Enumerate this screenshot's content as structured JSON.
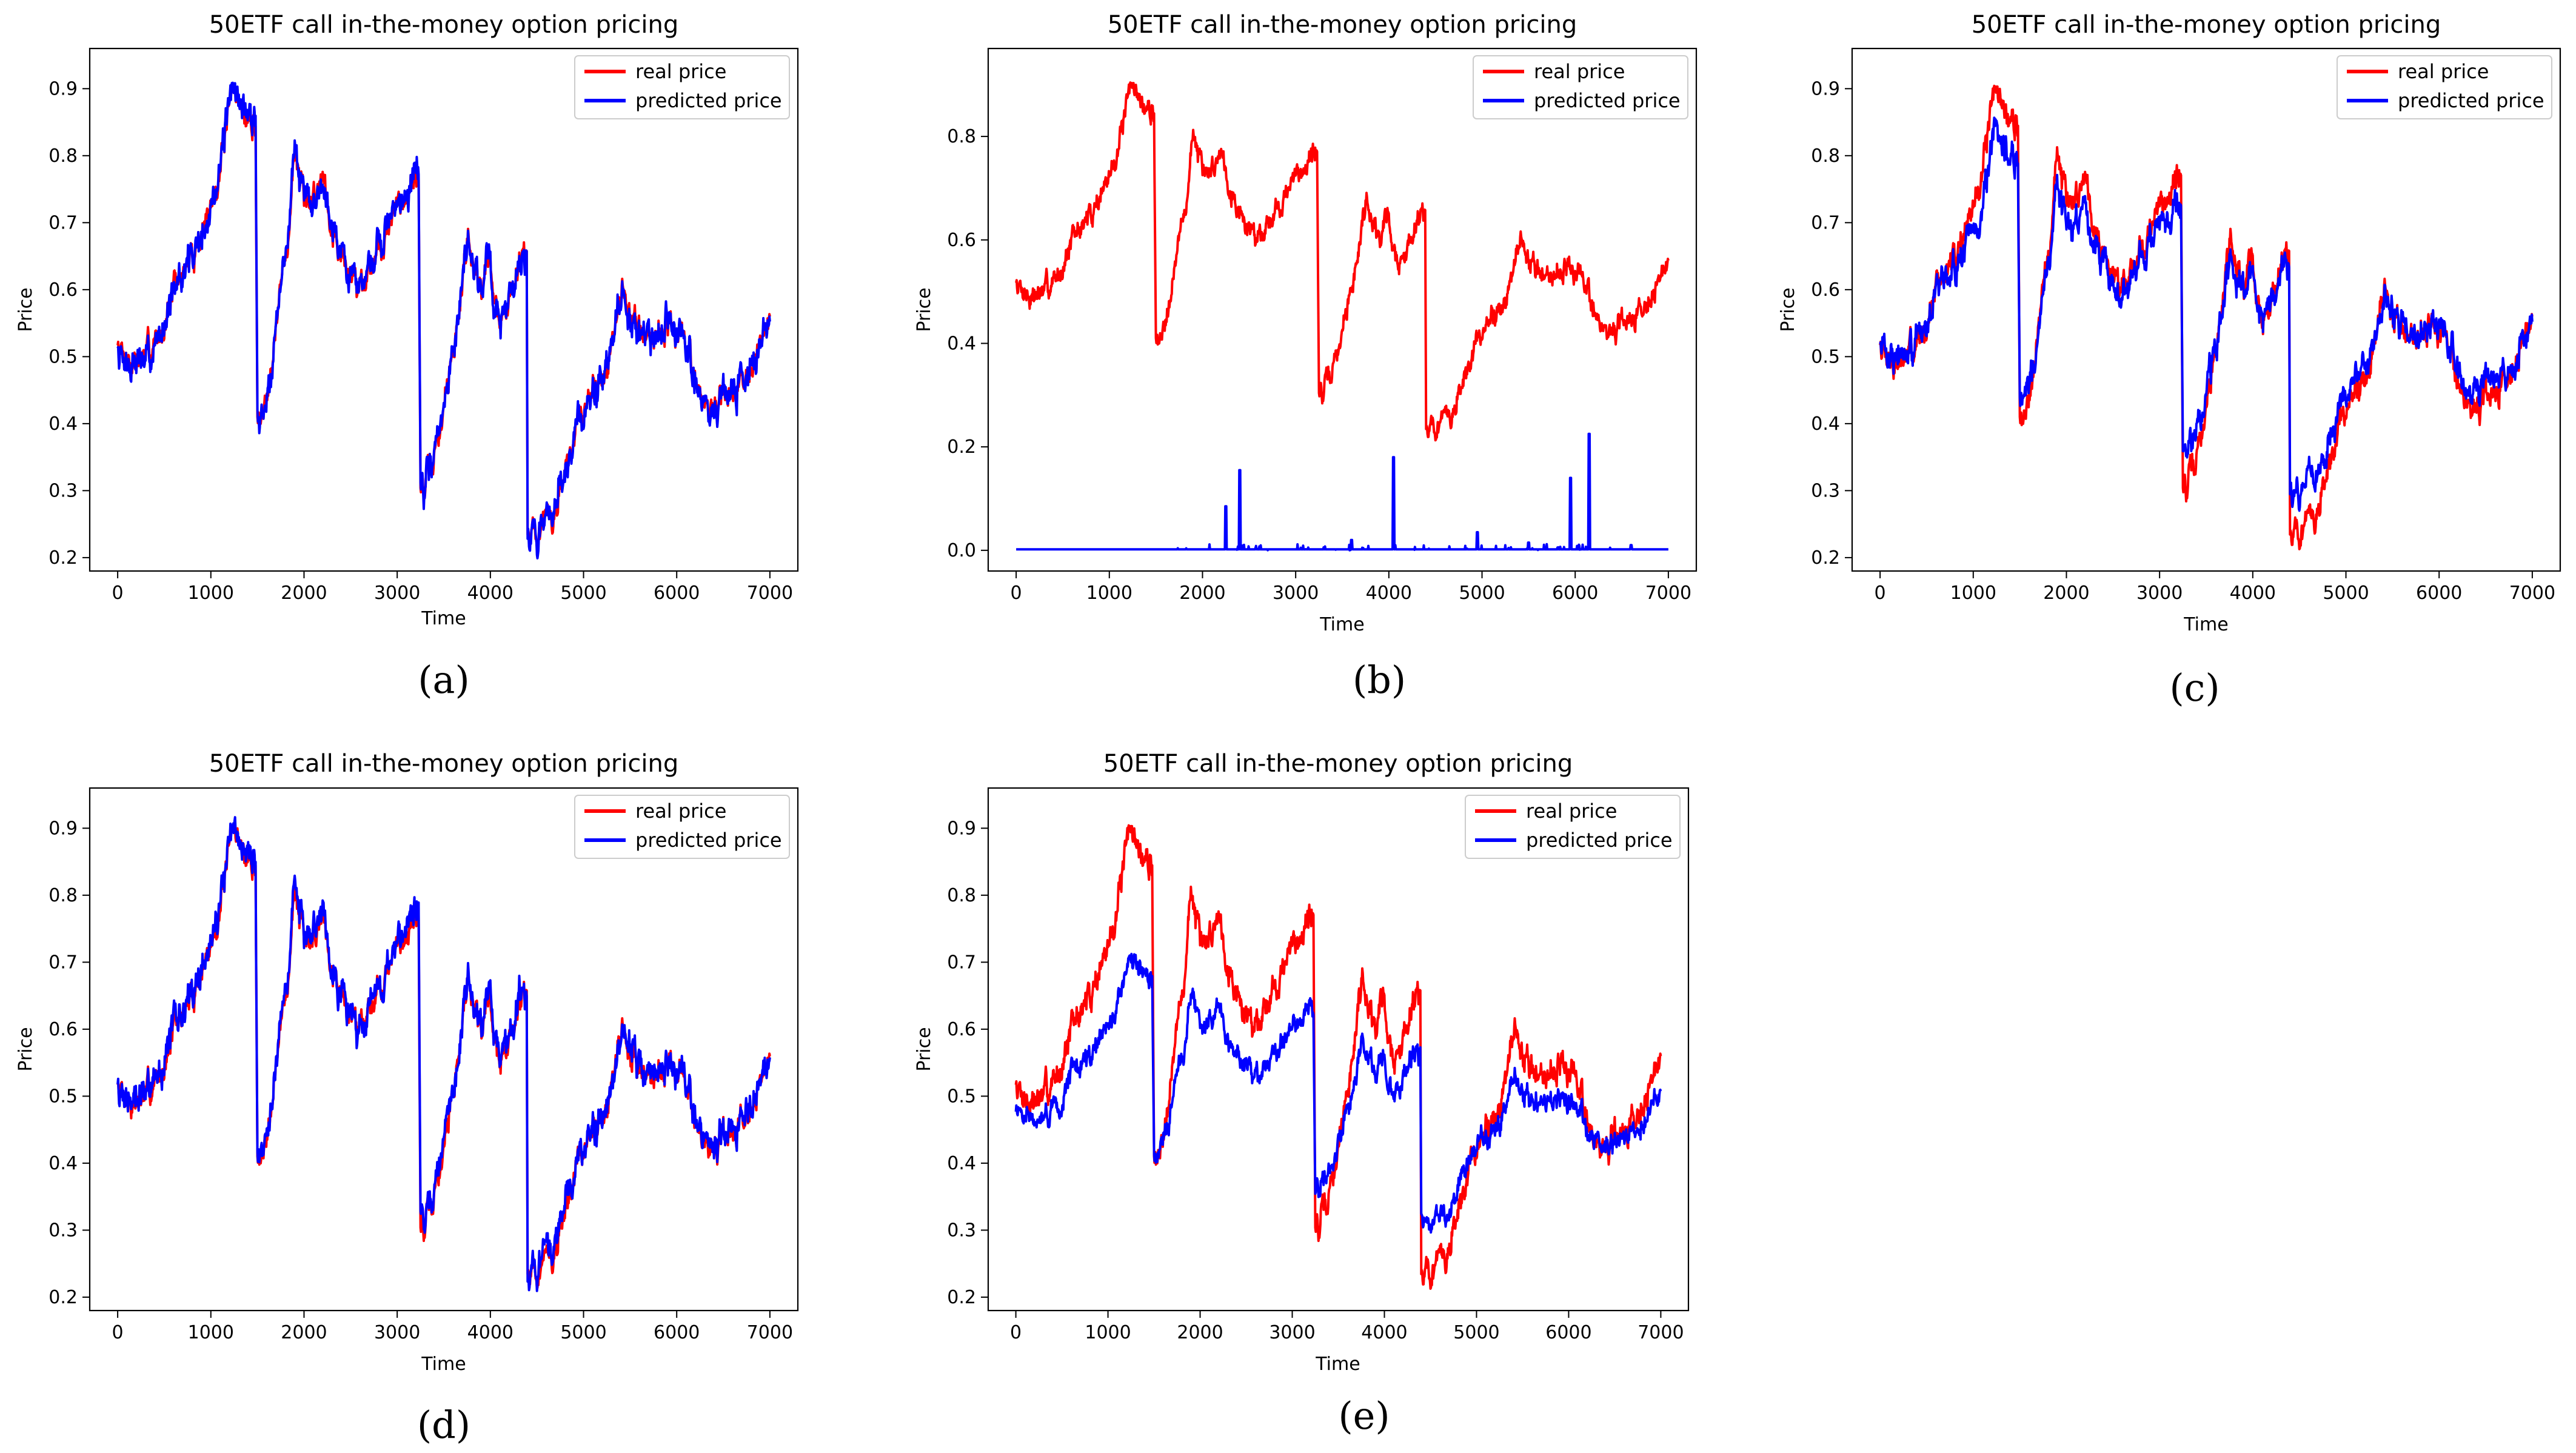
{
  "figure": {
    "panels_order": [
      "a",
      "b",
      "c",
      "d",
      "e"
    ]
  },
  "chart_data": [
    {
      "id": "a",
      "caption": "(a)",
      "type": "line",
      "title": "50ETF call in-the-money option pricing",
      "xlabel": "Time",
      "ylabel": "Price",
      "xlim": [
        -300,
        7300
      ],
      "ylim": [
        0.18,
        0.96
      ],
      "xticks": [
        0,
        1000,
        2000,
        3000,
        4000,
        5000,
        6000,
        7000
      ],
      "xtick_labels": [
        "0",
        "1000",
        "2000",
        "3000",
        "4000",
        "5000",
        "6000",
        "7000"
      ],
      "yticks": [
        0.2,
        0.3,
        0.4,
        0.5,
        0.6,
        0.7,
        0.8,
        0.9
      ],
      "ytick_labels": [
        "0.2",
        "0.3",
        "0.4",
        "0.5",
        "0.6",
        "0.7",
        "0.8",
        "0.9"
      ],
      "legend": {
        "position": "top-right",
        "entries": [
          "real price",
          "predicted price"
        ]
      },
      "model": {
        "kind": "track",
        "scale": 1.0,
        "offset": 0.0,
        "noise": 0.018,
        "seed": 11
      },
      "series": [
        {
          "name": "real price",
          "color": "#ff0000"
        },
        {
          "name": "predicted price",
          "color": "#0000ff"
        }
      ]
    },
    {
      "id": "b",
      "caption": "(b)",
      "type": "line",
      "title": "50ETF call in-the-money option pricing",
      "xlabel": "Time",
      "ylabel": "Price",
      "xlim": [
        -300,
        7300
      ],
      "ylim": [
        -0.04,
        0.97
      ],
      "xticks": [
        0,
        1000,
        2000,
        3000,
        4000,
        5000,
        6000,
        7000
      ],
      "xtick_labels": [
        "0",
        "1000",
        "2000",
        "3000",
        "4000",
        "5000",
        "6000",
        "7000"
      ],
      "yticks": [
        0.0,
        0.2,
        0.4,
        0.6,
        0.8
      ],
      "ytick_labels": [
        "0.0",
        "0.2",
        "0.4",
        "0.6",
        "0.8"
      ],
      "legend": {
        "position": "top-right",
        "entries": [
          "real price",
          "predicted price"
        ]
      },
      "model": {
        "kind": "flat",
        "spikes": [
          [
            2250,
            0.085
          ],
          [
            2400,
            0.155
          ],
          [
            4050,
            0.18
          ],
          [
            5950,
            0.14
          ],
          [
            6150,
            0.225
          ],
          [
            3600,
            0.02
          ],
          [
            4950,
            0.035
          ],
          [
            5500,
            0.015
          ],
          [
            6600,
            0.01
          ]
        ]
      },
      "series": [
        {
          "name": "real price",
          "color": "#ff0000"
        },
        {
          "name": "predicted price",
          "color": "#0000ff"
        }
      ]
    },
    {
      "id": "c",
      "caption": "(c)",
      "type": "line",
      "title": "50ETF call in-the-money option pricing",
      "xlabel": "Time",
      "ylabel": "Price",
      "xlim": [
        -300,
        7300
      ],
      "ylim": [
        0.18,
        0.96
      ],
      "xticks": [
        0,
        1000,
        2000,
        3000,
        4000,
        5000,
        6000,
        7000
      ],
      "xtick_labels": [
        "0",
        "1000",
        "2000",
        "3000",
        "4000",
        "5000",
        "6000",
        "7000"
      ],
      "yticks": [
        0.2,
        0.3,
        0.4,
        0.5,
        0.6,
        0.7,
        0.8,
        0.9
      ],
      "ytick_labels": [
        "0.2",
        "0.3",
        "0.4",
        "0.5",
        "0.6",
        "0.7",
        "0.8",
        "0.9"
      ],
      "legend": {
        "position": "top-right",
        "entries": [
          "real price",
          "predicted price"
        ]
      },
      "model": {
        "kind": "track",
        "scale": 0.82,
        "offset": 0.1,
        "noise": 0.02,
        "seed": 23
      },
      "series": [
        {
          "name": "real price",
          "color": "#ff0000"
        },
        {
          "name": "predicted price",
          "color": "#0000ff"
        }
      ]
    },
    {
      "id": "d",
      "caption": "(d)",
      "type": "line",
      "title": "50ETF call in-the-money option pricing",
      "xlabel": "Time",
      "ylabel": "Price",
      "xlim": [
        -300,
        7300
      ],
      "ylim": [
        0.18,
        0.96
      ],
      "xticks": [
        0,
        1000,
        2000,
        3000,
        4000,
        5000,
        6000,
        7000
      ],
      "xtick_labels": [
        "0",
        "1000",
        "2000",
        "3000",
        "4000",
        "5000",
        "6000",
        "7000"
      ],
      "yticks": [
        0.2,
        0.3,
        0.4,
        0.5,
        0.6,
        0.7,
        0.8,
        0.9
      ],
      "ytick_labels": [
        "0.2",
        "0.3",
        "0.4",
        "0.5",
        "0.6",
        "0.7",
        "0.8",
        "0.9"
      ],
      "legend": {
        "position": "top-right",
        "entries": [
          "real price",
          "predicted price"
        ]
      },
      "model": {
        "kind": "track",
        "scale": 1.0,
        "offset": 0.005,
        "noise": 0.017,
        "seed": 37
      },
      "series": [
        {
          "name": "real price",
          "color": "#ff0000"
        },
        {
          "name": "predicted price",
          "color": "#0000ff"
        }
      ]
    },
    {
      "id": "e",
      "caption": "(e)",
      "type": "line",
      "title": "50ETF call in-the-money option pricing",
      "xlabel": "Time",
      "ylabel": "Price",
      "xlim": [
        -300,
        7300
      ],
      "ylim": [
        0.18,
        0.96
      ],
      "xticks": [
        0,
        1000,
        2000,
        3000,
        4000,
        5000,
        6000,
        7000
      ],
      "xtick_labels": [
        "0",
        "1000",
        "2000",
        "3000",
        "4000",
        "5000",
        "6000",
        "7000"
      ],
      "yticks": [
        0.2,
        0.3,
        0.4,
        0.5,
        0.6,
        0.7,
        0.8,
        0.9
      ],
      "ytick_labels": [
        "0.2",
        "0.3",
        "0.4",
        "0.5",
        "0.6",
        "0.7",
        "0.8",
        "0.9"
      ],
      "legend": {
        "position": "top-right",
        "entries": [
          "real price",
          "predicted price"
        ]
      },
      "model": {
        "kind": "track",
        "scale": 0.6,
        "offset": 0.17,
        "noise": 0.014,
        "seed": 51
      },
      "series": [
        {
          "name": "real price",
          "color": "#ff0000"
        },
        {
          "name": "predicted price",
          "color": "#0000ff"
        }
      ]
    }
  ],
  "real_price_anchors": {
    "t": [
      0,
      150,
      300,
      450,
      600,
      800,
      1000,
      1150,
      1250,
      1350,
      1480,
      1500,
      1550,
      1700,
      1850,
      1900,
      2000,
      2150,
      2200,
      2300,
      2450,
      2600,
      2800,
      3000,
      3150,
      3230,
      3250,
      3300,
      3450,
      3650,
      3750,
      3800,
      3900,
      4000,
      4050,
      4150,
      4250,
      4350,
      4390,
      4400,
      4550,
      4700,
      4900,
      5100,
      5300,
      5400,
      5500,
      5700,
      5900,
      6100,
      6300,
      6500,
      6700,
      6900,
      7000
    ],
    "price": [
      0.52,
      0.49,
      0.5,
      0.53,
      0.6,
      0.65,
      0.72,
      0.82,
      0.91,
      0.86,
      0.84,
      0.42,
      0.4,
      0.55,
      0.7,
      0.82,
      0.72,
      0.75,
      0.78,
      0.7,
      0.63,
      0.61,
      0.66,
      0.72,
      0.76,
      0.77,
      0.32,
      0.3,
      0.38,
      0.55,
      0.68,
      0.66,
      0.6,
      0.66,
      0.57,
      0.55,
      0.62,
      0.66,
      0.66,
      0.24,
      0.24,
      0.27,
      0.38,
      0.45,
      0.5,
      0.6,
      0.56,
      0.53,
      0.55,
      0.52,
      0.42,
      0.43,
      0.47,
      0.51,
      0.57
    ]
  }
}
